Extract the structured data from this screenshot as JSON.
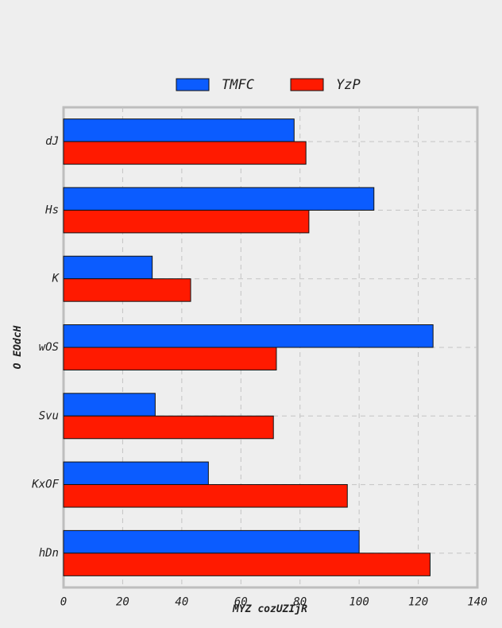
{
  "chart_data": {
    "type": "bar",
    "orientation": "horizontal",
    "categories": [
      "dJ",
      "Hs",
      "K",
      "wOS",
      "Svu",
      "KxOF",
      "hDn"
    ],
    "series": [
      {
        "name": "TMFC",
        "color": "#0b5cff",
        "values": [
          78,
          105,
          30,
          125,
          31,
          49,
          100
        ]
      },
      {
        "name": "YzP",
        "color": "#ff1a00",
        "values": [
          82,
          83,
          43,
          72,
          71,
          96,
          124
        ]
      }
    ],
    "xlabel": "MYZ cozUZIjR",
    "ylabel": "O EOdcH",
    "xlim": [
      0,
      140
    ],
    "xticks": [
      "0",
      "20",
      "40",
      "60",
      "80",
      "100",
      "120",
      "140"
    ],
    "grid": true,
    "legend_position": "top-center"
  }
}
